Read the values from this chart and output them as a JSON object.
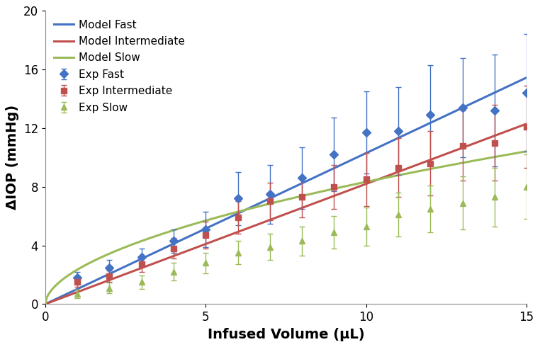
{
  "title": "",
  "xlabel": "Infused Volume (μL)",
  "ylabel": "ΔIOP (mmHg)",
  "xlim": [
    0,
    15
  ],
  "ylim": [
    0,
    20
  ],
  "xticks": [
    0,
    5,
    10,
    15
  ],
  "yticks": [
    0,
    4,
    8,
    12,
    16,
    20
  ],
  "background_color": "#ffffff",
  "model_fast_color": "#4472C4",
  "model_intermediate_color": "#C0504D",
  "model_slow_color": "#9BBB59",
  "model_fast_params": [
    1.03,
    0.0
  ],
  "model_intermediate_params": [
    0.82,
    0.0
  ],
  "model_slow_a": 2.35,
  "model_slow_b": 0.55,
  "exp_fast_x": [
    1,
    2,
    3,
    4,
    5,
    6,
    7,
    8,
    9,
    10,
    11,
    12,
    13,
    14,
    15
  ],
  "exp_fast_y": [
    1.8,
    2.5,
    3.2,
    4.3,
    5.1,
    7.2,
    7.5,
    8.6,
    10.2,
    11.7,
    11.8,
    12.9,
    13.4,
    13.2,
    14.4
  ],
  "exp_fast_yerr": [
    0.4,
    0.5,
    0.6,
    0.8,
    1.2,
    1.8,
    2.0,
    2.1,
    2.5,
    2.8,
    3.0,
    3.4,
    3.4,
    3.8,
    4.0
  ],
  "exp_intermediate_x": [
    1,
    2,
    3,
    4,
    5,
    6,
    7,
    8,
    9,
    10,
    11,
    12,
    13,
    14,
    15
  ],
  "exp_intermediate_y": [
    1.5,
    1.9,
    2.7,
    3.8,
    4.7,
    5.9,
    7.0,
    7.3,
    8.0,
    8.5,
    9.3,
    9.6,
    10.8,
    11.0,
    12.1
  ],
  "exp_intermediate_yerr": [
    0.3,
    0.4,
    0.5,
    0.7,
    0.9,
    1.1,
    1.3,
    1.4,
    1.5,
    1.8,
    2.0,
    2.2,
    2.4,
    2.6,
    2.8
  ],
  "exp_slow_x": [
    1,
    2,
    3,
    4,
    5,
    6,
    7,
    8,
    9,
    10,
    11,
    12,
    13,
    14,
    15
  ],
  "exp_slow_y": [
    0.7,
    1.1,
    1.5,
    2.2,
    2.8,
    3.5,
    3.9,
    4.3,
    4.9,
    5.3,
    6.1,
    6.5,
    6.9,
    7.3,
    8.0
  ],
  "exp_slow_yerr": [
    0.3,
    0.35,
    0.45,
    0.6,
    0.7,
    0.8,
    0.9,
    1.0,
    1.1,
    1.3,
    1.5,
    1.6,
    1.8,
    2.0,
    2.2
  ],
  "legend_labels": [
    "Model Fast",
    "Model Intermediate",
    "Model Slow",
    "Exp Fast",
    "Exp Intermediate",
    "Exp Slow"
  ],
  "exp_fast_marker": "D",
  "exp_intermediate_marker": "s",
  "exp_slow_marker": "^",
  "line_width": 2.2,
  "marker_size": 6,
  "font_size_labels": 14,
  "font_size_ticks": 12,
  "font_size_legend": 11
}
